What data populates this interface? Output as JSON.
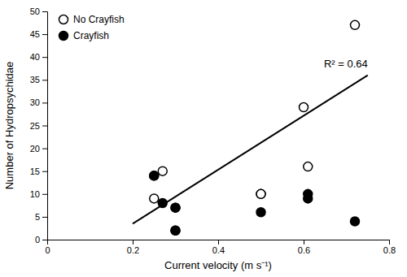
{
  "chart_data": {
    "type": "scatter",
    "x_label": "Current velocity (m s⁻¹)",
    "y_label": "Number of Hydropsychidae",
    "series": [
      {
        "name": "No Crayfish",
        "type": "scatter",
        "marker": "circle",
        "color": "#ffffff",
        "x": [
          0.25,
          0.27,
          0.3,
          0.3,
          0.5,
          0.5,
          0.6,
          0.61,
          0.72
        ],
        "values": [
          9,
          15,
          7,
          2,
          10,
          10,
          29,
          16,
          47
        ]
      },
      {
        "name": "Crayfish",
        "type": "scatter",
        "marker": "circle",
        "color": "#000000",
        "x": [
          0.25,
          0.25,
          0.27,
          0.3,
          0.3,
          0.5,
          0.61,
          0.61,
          0.72
        ],
        "values": [
          14,
          14,
          8,
          7,
          2,
          6,
          9,
          10,
          4
        ]
      },
      {
        "type": "line",
        "line_style": "solid",
        "color": "#000000",
        "x": [
          0.2,
          0.75
        ],
        "values": [
          3.5,
          36.0
        ]
      }
    ],
    "annotations": [
      {
        "text": "R² = 0.64"
      }
    ],
    "xlim": [
      0,
      0.8
    ],
    "ylim": [
      0,
      50
    ],
    "xticks": [
      0,
      0.2,
      0.4,
      0.6,
      0.8
    ],
    "yticks": [
      0,
      5,
      10,
      15,
      20,
      25,
      30,
      35,
      40,
      45,
      50
    ],
    "legend": "upper left",
    "grid": false
  }
}
